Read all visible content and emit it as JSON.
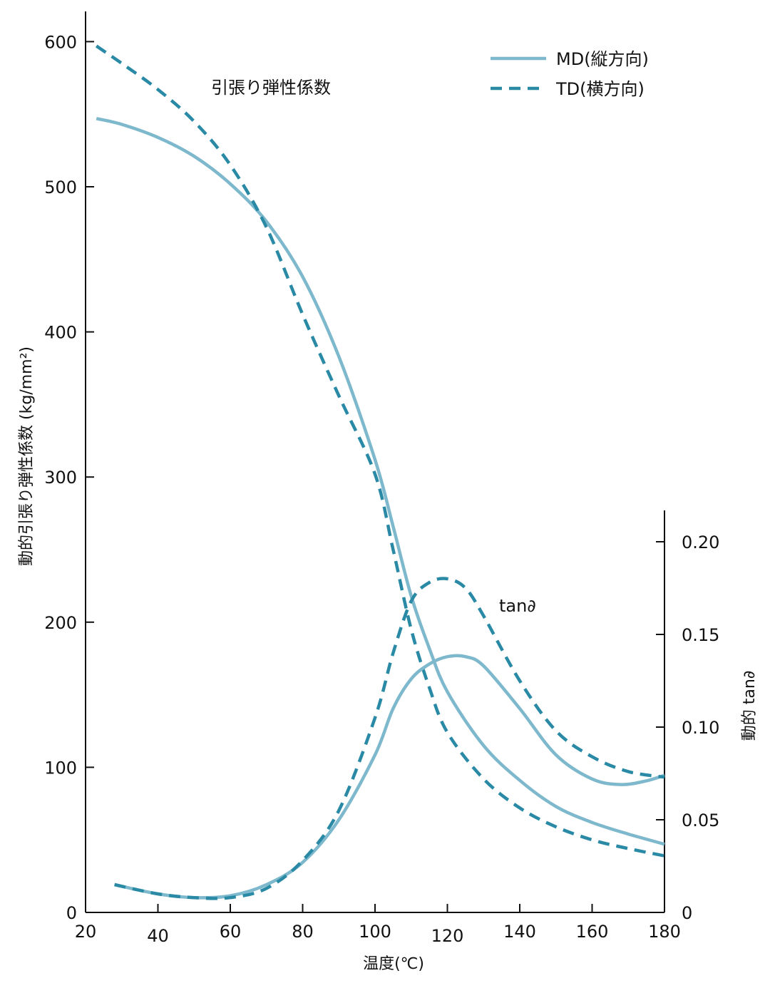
{
  "chart_data": {
    "type": "line",
    "xlabel": "温度(℃)",
    "ylabel_left": "動的引張り弾性係数 (kg/mm²)",
    "ylabel_right": "動的 tan∂",
    "xlim": [
      20,
      180
    ],
    "ylim_left": [
      0,
      620
    ],
    "ylim_right": [
      0,
      0.22
    ],
    "x_ticks": [
      20,
      40,
      60,
      80,
      100,
      120,
      140,
      160,
      180
    ],
    "y_left_ticks": [
      0,
      100,
      200,
      300,
      400,
      500,
      600
    ],
    "y_right_ticks": [
      0,
      0.05,
      0.1,
      0.15,
      0.2
    ],
    "y_right_tick_labels": [
      "0",
      "0.05",
      "0.10",
      "0.15",
      "0.20"
    ],
    "grid": false,
    "legend_position": "top-right",
    "annotations": {
      "modulus": "引張り弾性係数",
      "tan": "tan∂"
    },
    "colors": {
      "md": "#7db8cc",
      "td": "#2a8aa6"
    },
    "legend": [
      {
        "label": "MD(縦方向)",
        "series": "md",
        "style": "solid"
      },
      {
        "label": "TD(横方向)",
        "series": "td",
        "style": "dashed"
      }
    ],
    "series": [
      {
        "key": "md_modulus",
        "axis": "left",
        "style": "solid",
        "color": "md",
        "x": [
          23,
          30,
          40,
          50,
          60,
          70,
          80,
          90,
          100,
          105,
          110,
          115,
          120,
          130,
          140,
          150,
          160,
          170,
          180
        ],
        "y": [
          547,
          543,
          534,
          521,
          502,
          476,
          438,
          383,
          312,
          266,
          218,
          182,
          152,
          115,
          91,
          73,
          62,
          54,
          47
        ]
      },
      {
        "key": "td_modulus",
        "axis": "left",
        "style": "dashed",
        "color": "td",
        "x": [
          23,
          30,
          40,
          50,
          60,
          70,
          80,
          90,
          100,
          105,
          110,
          115,
          120,
          130,
          140,
          150,
          160,
          170,
          180
        ],
        "y": [
          597,
          585,
          567,
          545,
          515,
          472,
          412,
          356,
          302,
          250,
          195,
          155,
          124,
          92,
          72,
          59,
          50,
          44,
          39
        ]
      },
      {
        "key": "md_tan",
        "axis": "right",
        "style": "solid",
        "color": "md",
        "x": [
          28,
          40,
          50,
          60,
          70,
          80,
          90,
          100,
          105,
          110,
          115,
          120,
          125,
          130,
          140,
          150,
          160,
          168,
          175,
          180
        ],
        "y": [
          0.015,
          0.01,
          0.008,
          0.009,
          0.015,
          0.027,
          0.05,
          0.085,
          0.11,
          0.126,
          0.134,
          0.138,
          0.138,
          0.133,
          0.11,
          0.085,
          0.072,
          0.069,
          0.071,
          0.074
        ]
      },
      {
        "key": "td_tan",
        "axis": "right",
        "style": "dashed",
        "color": "td",
        "x": [
          28,
          40,
          50,
          60,
          70,
          80,
          90,
          100,
          105,
          110,
          115,
          120,
          125,
          130,
          140,
          150,
          160,
          170,
          180
        ],
        "y": [
          0.015,
          0.01,
          0.008,
          0.008,
          0.013,
          0.028,
          0.055,
          0.105,
          0.14,
          0.168,
          0.178,
          0.18,
          0.175,
          0.16,
          0.125,
          0.098,
          0.084,
          0.076,
          0.073
        ]
      }
    ]
  }
}
